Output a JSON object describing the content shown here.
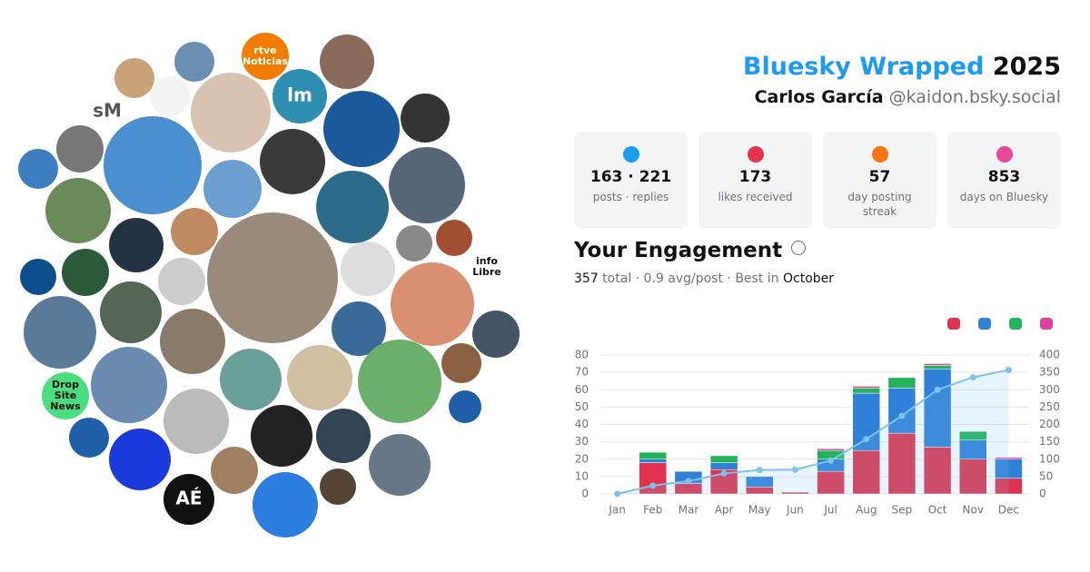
{
  "header": {
    "title": "Bluesky Wrapped",
    "year": "2025",
    "name": "Carlos García",
    "handle": "@kaidon.bsky.social"
  },
  "stats": [
    {
      "value": "163 · 221",
      "label": "posts · replies",
      "color": "#1d9bf0"
    },
    {
      "value": "173",
      "label": "likes received",
      "color": "#e8334f"
    },
    {
      "value": "57",
      "label": "day posting streak",
      "color": "#f97316"
    },
    {
      "value": "853",
      "label": "days on Bluesky",
      "color": "#ec4899"
    }
  ],
  "engagement": {
    "title": "Your Engagement",
    "summary": [
      "357",
      " total · 0.9 avg/post · Best in ",
      "October"
    ]
  },
  "avatar_labels": [
    "sM",
    "rtve",
    "Noticias",
    "lm",
    "info",
    "Libre",
    "AÉ",
    "Drop",
    "Site",
    "News"
  ],
  "chart_data": {
    "type": "bar",
    "categories": [
      "Jan",
      "Feb",
      "Mar",
      "Apr",
      "May",
      "Jun",
      "Jul",
      "Aug",
      "Sep",
      "Oct",
      "Nov",
      "Dec"
    ],
    "series": [
      {
        "color": "#e0334f",
        "values": [
          0,
          18,
          6,
          14,
          4,
          1,
          13,
          25,
          35,
          27,
          20,
          9
        ]
      },
      {
        "color": "#2f80d8",
        "values": [
          0,
          2,
          7,
          4,
          6,
          0,
          7,
          33,
          26,
          45,
          11,
          11
        ]
      },
      {
        "color": "#22b35a",
        "values": [
          0,
          4,
          0,
          4,
          0,
          0,
          5,
          3,
          6,
          2,
          5,
          0
        ]
      },
      {
        "color": "#e040a0",
        "values": [
          0,
          0,
          0,
          0,
          0,
          0,
          1,
          1,
          0,
          1,
          0,
          1
        ]
      },
      {
        "type": "line",
        "axis": "y2",
        "color": "#7cc3ea",
        "values": [
          0,
          24,
          37,
          59,
          69,
          70,
          96,
          158,
          225,
          300,
          336,
          357
        ]
      }
    ],
    "ylim": [
      0,
      80
    ],
    "yticks": [
      0,
      10,
      20,
      30,
      40,
      50,
      60,
      70,
      80
    ],
    "y2lim": [
      0,
      400
    ],
    "y2ticks": [
      0,
      50,
      100,
      150,
      200,
      250,
      300,
      350,
      400
    ],
    "grid": true
  }
}
